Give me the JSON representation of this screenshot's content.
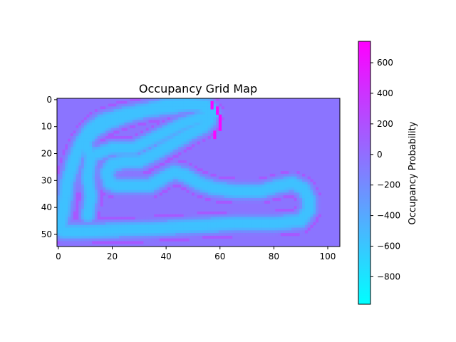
{
  "chart_data": {
    "type": "heatmap",
    "title": "Occupancy Grid Map",
    "colormap": "cool",
    "colormap_endpoints": [
      "#00ffff",
      "#ff00ff"
    ],
    "grid_shape": [
      55,
      105
    ],
    "x_ticks": [
      "0",
      "20",
      "40",
      "60",
      "80",
      "100"
    ],
    "y_ticks": [
      "0",
      "10",
      "20",
      "30",
      "40",
      "50"
    ],
    "background_value": -40,
    "track_shape": "closed loop track (occupancy values sampled along loop)",
    "track_loop": [
      [
        0.5,
        48
      ],
      [
        2,
        40
      ],
      [
        3.5,
        30
      ],
      [
        6,
        22
      ],
      [
        8.5,
        16
      ],
      [
        12,
        11
      ],
      [
        16,
        8
      ],
      [
        24,
        5.5
      ],
      [
        32,
        4
      ],
      [
        40,
        2
      ],
      [
        48,
        1.5
      ],
      [
        53,
        2
      ],
      [
        56,
        4.5
      ],
      [
        56,
        7.5
      ],
      [
        54,
        10
      ],
      [
        48,
        13
      ],
      [
        43,
        16
      ],
      [
        36,
        20
      ],
      [
        30,
        23
      ],
      [
        25,
        23
      ],
      [
        20,
        24
      ],
      [
        18,
        27
      ],
      [
        19,
        31
      ],
      [
        22,
        32
      ],
      [
        28,
        32
      ],
      [
        34,
        32
      ],
      [
        39,
        29
      ],
      [
        43,
        27
      ],
      [
        47,
        28
      ],
      [
        52,
        31
      ],
      [
        58,
        33
      ],
      [
        66,
        34
      ],
      [
        75,
        34
      ],
      [
        82,
        32
      ],
      [
        87,
        31
      ],
      [
        91,
        33
      ],
      [
        93,
        37
      ],
      [
        93,
        41
      ],
      [
        90,
        45
      ],
      [
        80,
        46
      ],
      [
        66,
        46
      ],
      [
        50,
        47
      ],
      [
        34,
        48
      ],
      [
        20,
        48.5
      ],
      [
        8,
        49
      ],
      [
        2,
        49
      ]
    ],
    "inner_boundary": [
      [
        11,
        43
      ],
      [
        12,
        36
      ],
      [
        11,
        29
      ],
      [
        12,
        21
      ],
      [
        20,
        18
      ],
      [
        28,
        18
      ],
      [
        34,
        15
      ],
      [
        40,
        12
      ],
      [
        46,
        9
      ],
      [
        52,
        7
      ],
      [
        56,
        6
      ],
      [
        57.5,
        5
      ],
      [
        55,
        2
      ],
      [
        48,
        2
      ],
      [
        42,
        3
      ],
      [
        34,
        4
      ],
      [
        26,
        6
      ],
      [
        18,
        9
      ],
      [
        13,
        12
      ],
      [
        10,
        16
      ],
      [
        12,
        21
      ]
    ],
    "track_value_range": [
      -560,
      -250
    ],
    "high_value_line": "thin high-occupancy band beside upper right of loop",
    "colorbar": {
      "label": "Occupancy Probability",
      "vmin": -980,
      "vmax": 740,
      "ticks": [
        "600",
        "400",
        "200",
        "0",
        "−200",
        "−400",
        "−600",
        "−800"
      ],
      "tick_values": [
        600,
        400,
        200,
        0,
        -200,
        -400,
        -600,
        -800
      ]
    }
  }
}
